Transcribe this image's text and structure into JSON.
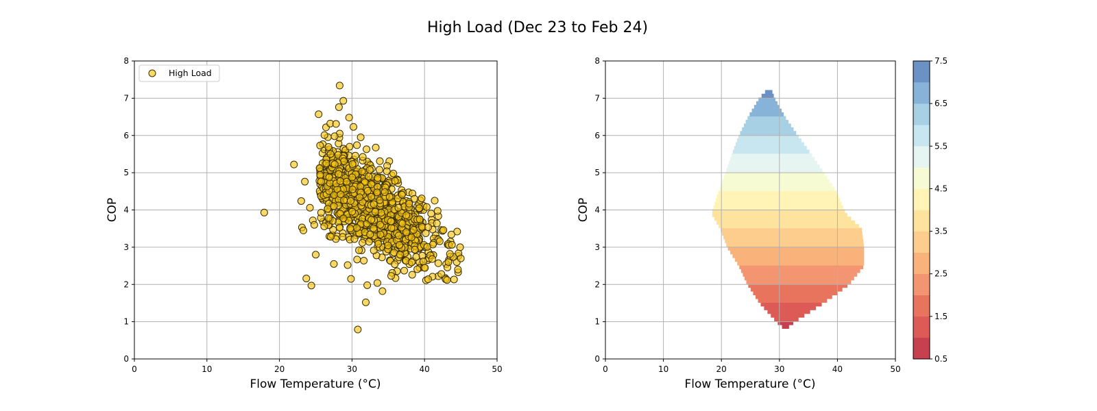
{
  "figure": {
    "title": "High Load (Dec 23 to Feb 24)",
    "colors": {
      "point_fill": "#f5c518",
      "point_edge": "#3a2e00",
      "grid": "#b0b0b0",
      "axis": "#000000"
    }
  },
  "chart_data": [
    {
      "type": "scatter",
      "title": "",
      "xlabel": "Flow Temperature (°C)",
      "ylabel": "COP",
      "xlim": [
        0,
        50
      ],
      "ylim": [
        0,
        8
      ],
      "xticks": [
        0,
        10,
        20,
        30,
        40,
        50
      ],
      "yticks": [
        0,
        1,
        2,
        3,
        4,
        5,
        6,
        7,
        8
      ],
      "grid": true,
      "legend": {
        "position": "top-left",
        "entries": [
          "High Load"
        ]
      },
      "series": [
        {
          "name": "High Load",
          "points": [
            [
              17.9,
              3.93
            ],
            [
              22.0,
              5.22
            ],
            [
              23.1,
              3.53
            ],
            [
              23.3,
              3.45
            ],
            [
              23.0,
              4.24
            ],
            [
              23.5,
              4.76
            ],
            [
              23.7,
              2.16
            ],
            [
              24.4,
              1.97
            ],
            [
              25.0,
              2.8
            ],
            [
              25.4,
              6.57
            ],
            [
              28.3,
              7.34
            ],
            [
              28.8,
              6.93
            ],
            [
              28.2,
              6.76
            ],
            [
              27.0,
              6.32
            ],
            [
              27.8,
              6.31
            ],
            [
              26.2,
              6.01
            ],
            [
              24.2,
              4.06
            ],
            [
              24.6,
              3.72
            ],
            [
              24.8,
              3.6
            ],
            [
              25.6,
              5.73
            ],
            [
              30.8,
              0.79
            ],
            [
              31.9,
              1.52
            ],
            [
              33.5,
              2.04
            ],
            [
              34.2,
              1.82
            ],
            [
              32.1,
              1.98
            ],
            [
              40.2,
              2.11
            ],
            [
              40.5,
              2.14
            ],
            [
              42.9,
              2.14
            ],
            [
              43.1,
              2.12
            ],
            [
              44.6,
              2.4
            ],
            [
              45.0,
              2.7
            ],
            [
              44.9,
              3.0
            ],
            [
              44.5,
              3.42
            ],
            [
              43.7,
              3.34
            ],
            [
              42.6,
              3.46
            ],
            [
              41.7,
              3.64
            ],
            [
              41.4,
              4.25
            ],
            [
              40.3,
              4.08
            ],
            [
              39.6,
              4.31
            ],
            [
              38.6,
              4.3
            ],
            [
              35.7,
              4.98
            ],
            [
              34.8,
              5.04
            ],
            [
              32.0,
              5.63
            ],
            [
              31.2,
              5.95
            ],
            [
              30.2,
              6.23
            ],
            [
              29.6,
              6.48
            ],
            [
              28.3,
              6.05
            ],
            [
              27.6,
              5.98
            ],
            [
              33.2,
              3.95
            ],
            [
              27.5,
              2.55
            ],
            [
              29.4,
              2.52
            ],
            [
              30.7,
              2.67
            ],
            [
              36.0,
              2.17
            ],
            [
              35.4,
              2.23
            ],
            [
              37.2,
              2.37
            ],
            [
              38.3,
              2.26
            ],
            [
              39.0,
              2.41
            ],
            [
              41.9,
              2.57
            ],
            [
              43.3,
              2.6
            ],
            [
              43.5,
              2.82
            ]
          ],
          "cluster_center": [
            32.0,
            3.9
          ]
        }
      ]
    },
    {
      "type": "heatmap",
      "subtype": "filled-contour",
      "title": "",
      "xlabel": "Flow Temperature (°C)",
      "ylabel": "COP",
      "xlim": [
        0,
        50
      ],
      "ylim": [
        0,
        8
      ],
      "xticks": [
        0,
        10,
        20,
        30,
        40,
        50
      ],
      "yticks": [
        0,
        1,
        2,
        3,
        4,
        5,
        6,
        7,
        8
      ],
      "grid": true,
      "region_extent": [
        {
          "cop": 0.82,
          "x_min": 30.8,
          "x_max": 31.3
        },
        {
          "cop": 1.0,
          "x_min": 29.5,
          "x_max": 32.6
        },
        {
          "cop": 1.5,
          "x_min": 26.6,
          "x_max": 37.6
        },
        {
          "cop": 2.0,
          "x_min": 24.5,
          "x_max": 42.0
        },
        {
          "cop": 2.5,
          "x_min": 23.0,
          "x_max": 44.6
        },
        {
          "cop": 3.0,
          "x_min": 21.0,
          "x_max": 44.6
        },
        {
          "cop": 3.5,
          "x_min": 19.8,
          "x_max": 44.2
        },
        {
          "cop": 3.9,
          "x_min": 18.3,
          "x_max": 41.5
        },
        {
          "cop": 4.5,
          "x_min": 19.5,
          "x_max": 39.8
        },
        {
          "cop": 5.0,
          "x_min": 20.7,
          "x_max": 37.7
        },
        {
          "cop": 5.5,
          "x_min": 21.8,
          "x_max": 35.5
        },
        {
          "cop": 6.0,
          "x_min": 23.0,
          "x_max": 33.2
        },
        {
          "cop": 6.5,
          "x_min": 24.6,
          "x_max": 31.0
        },
        {
          "cop": 7.0,
          "x_min": 26.5,
          "x_max": 29.2
        },
        {
          "cop": 7.25,
          "x_min": 28.0,
          "x_max": 28.6
        }
      ],
      "levels": [
        0.5,
        1.0,
        1.5,
        2.0,
        2.5,
        3.0,
        3.5,
        4.0,
        4.5,
        5.0,
        5.5,
        6.0,
        6.5,
        7.0,
        7.5
      ],
      "level_colors": [
        "#c64050",
        "#dd5b57",
        "#e9745e",
        "#f39570",
        "#f8b27a",
        "#fccd8c",
        "#fee39f",
        "#fff3b6",
        "#f6fbd3",
        "#e6f4f2",
        "#c7e6ef",
        "#a7d0e4",
        "#86b3d7",
        "#6c91c5",
        "#5a6fb3"
      ],
      "colorbar": {
        "ticks": [
          0.5,
          1.5,
          2.5,
          3.5,
          4.5,
          5.5,
          6.5,
          7.5
        ],
        "tick_labels": [
          "0.5",
          "1.5",
          "2.5",
          "3.5",
          "4.5",
          "5.5",
          "6.5",
          "7.5"
        ]
      }
    }
  ]
}
